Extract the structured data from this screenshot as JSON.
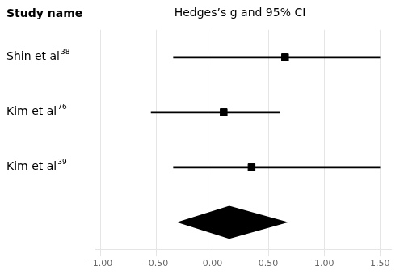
{
  "chart_data": {
    "type": "forest",
    "title": "Hedges’s g and 95% CI",
    "ylabel": "Study name",
    "categories": [
      "Shin et al",
      "Kim et al",
      "Kim et al"
    ],
    "superscripts": [
      "38",
      "76",
      "39"
    ],
    "values": [
      0.65,
      0.1,
      0.35
    ],
    "ci_low": [
      -0.35,
      -0.55,
      -0.35
    ],
    "ci_high": [
      1.5,
      0.6,
      1.5
    ],
    "marker": "square",
    "pooled": {
      "value": 0.15,
      "ci_low": -0.32,
      "ci_high": 0.68,
      "marker": "diamond"
    },
    "color": "#000000",
    "xlim": [
      -1.05,
      1.6
    ],
    "xticks": [
      {
        "value": -1.0,
        "label": "-1.00"
      },
      {
        "value": -0.5,
        "label": "-0.50"
      },
      {
        "value": 0.0,
        "label": "0.00"
      },
      {
        "value": 0.5,
        "label": "0.50"
      },
      {
        "value": 1.0,
        "label": "1.00"
      },
      {
        "value": 1.5,
        "label": "1.50"
      }
    ],
    "grid": true
  }
}
